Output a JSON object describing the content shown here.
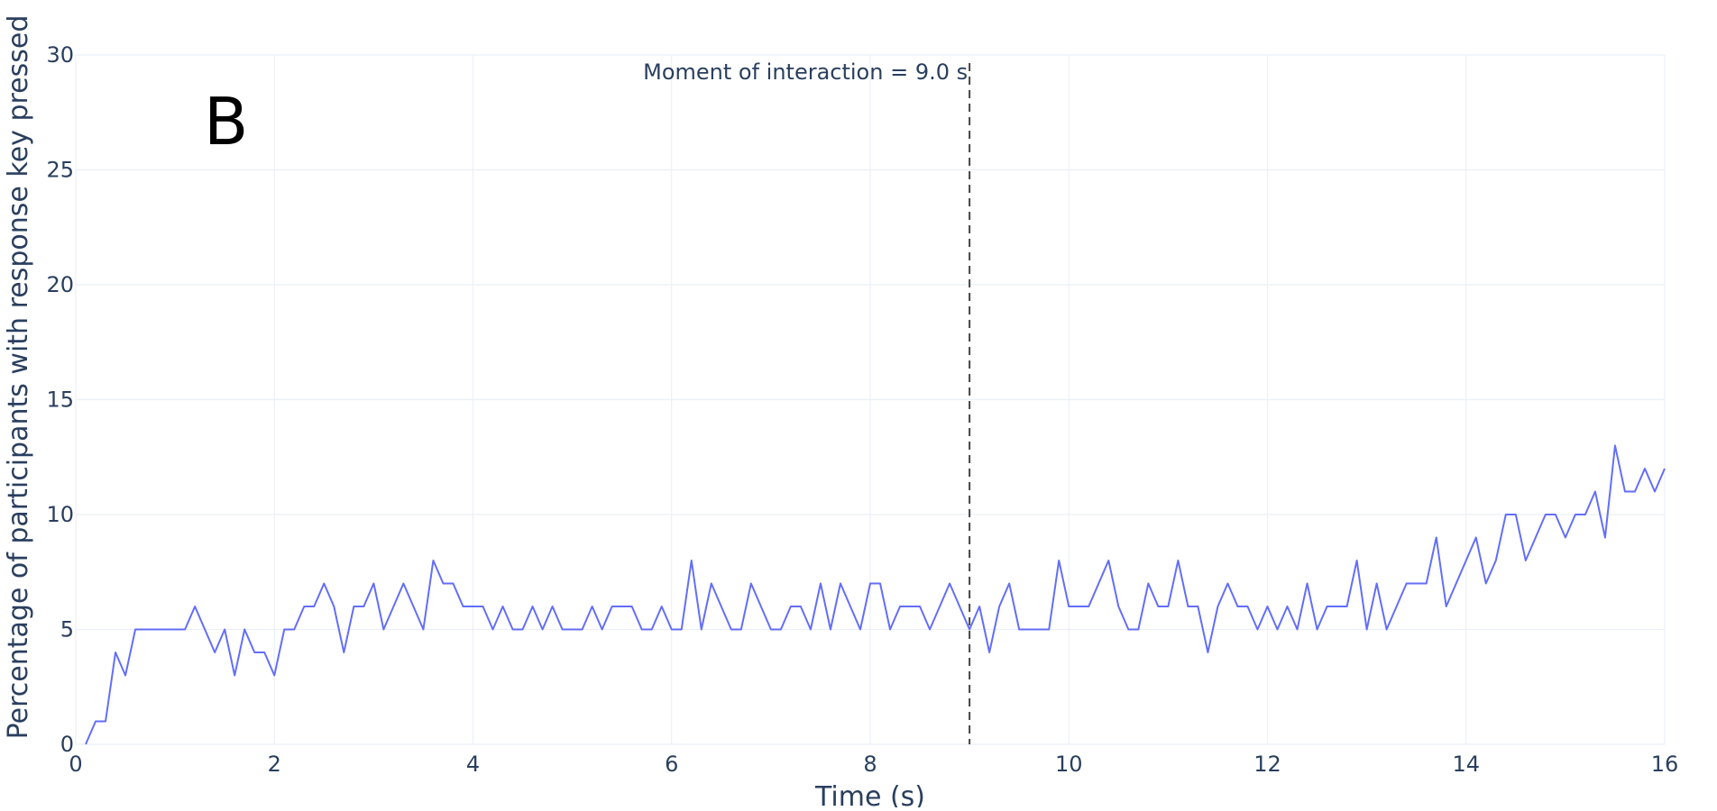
{
  "chart_data": {
    "type": "line",
    "title": "",
    "xlabel": "Time (s)",
    "ylabel": "Percentage of participants with response key pressed",
    "panel_label": "B",
    "xlim": [
      0,
      16
    ],
    "ylim": [
      0,
      30
    ],
    "x_ticks": [
      0,
      2,
      4,
      6,
      8,
      10,
      12,
      14,
      16
    ],
    "y_ticks": [
      0,
      5,
      10,
      15,
      20,
      25,
      30
    ],
    "grid": true,
    "line_color": "#636efa",
    "series": [
      {
        "x": [
          0.1,
          0.2,
          0.3,
          0.4,
          0.5,
          0.6,
          0.7,
          0.8,
          0.9,
          1.0,
          1.1,
          1.2,
          1.3,
          1.4,
          1.5,
          1.6,
          1.7,
          1.8,
          1.9,
          2.0,
          2.1,
          2.2,
          2.3,
          2.4,
          2.5,
          2.6,
          2.7,
          2.8,
          2.9,
          3.0,
          3.1,
          3.2,
          3.3,
          3.4,
          3.5,
          3.6,
          3.7,
          3.8,
          3.9,
          4.0,
          4.1,
          4.2,
          4.3,
          4.4,
          4.5,
          4.6,
          4.7,
          4.8,
          4.9,
          5.0,
          5.1,
          5.2,
          5.3,
          5.4,
          5.5,
          5.6,
          5.7,
          5.8,
          5.9,
          6.0,
          6.1,
          6.2,
          6.3,
          6.4,
          6.5,
          6.6,
          6.7,
          6.8,
          6.9,
          7.0,
          7.1,
          7.2,
          7.3,
          7.4,
          7.5,
          7.6,
          7.7,
          7.8,
          7.9,
          8.0,
          8.1,
          8.2,
          8.3,
          8.4,
          8.5,
          8.6,
          8.7,
          8.8,
          8.9,
          9.0,
          9.1,
          9.2,
          9.3,
          9.4,
          9.5,
          9.6,
          9.7,
          9.8,
          9.9,
          10.0,
          10.1,
          10.2,
          10.3,
          10.4,
          10.5,
          10.6,
          10.7,
          10.8,
          10.9,
          11.0,
          11.1,
          11.2,
          11.3,
          11.4,
          11.5,
          11.6,
          11.7,
          11.8,
          11.9,
          12.0,
          12.1,
          12.2,
          12.3,
          12.4,
          12.5,
          12.6,
          12.7,
          12.8,
          12.9,
          13.0,
          13.1,
          13.2,
          13.3,
          13.4,
          13.5,
          13.6,
          13.7,
          13.8,
          13.9,
          14.0,
          14.1,
          14.2,
          14.3,
          14.4,
          14.5,
          14.6,
          14.7,
          14.8,
          14.9,
          15.0,
          15.1,
          15.2,
          15.3,
          15.4,
          15.5,
          15.6,
          15.7,
          15.8,
          15.9,
          16.0
        ],
        "y": [
          0,
          1,
          1,
          4,
          3,
          5,
          5,
          5,
          5,
          5,
          5,
          6,
          5,
          4,
          5,
          3,
          5,
          4,
          4,
          3,
          5,
          5,
          6,
          6,
          7,
          6,
          4,
          6,
          6,
          7,
          5,
          6,
          7,
          6,
          5,
          8,
          7,
          7,
          6,
          6,
          6,
          5,
          6,
          5,
          5,
          6,
          5,
          6,
          5,
          5,
          5,
          6,
          5,
          6,
          6,
          6,
          5,
          5,
          6,
          5,
          5,
          8,
          5,
          7,
          6,
          5,
          5,
          7,
          6,
          5,
          5,
          6,
          6,
          5,
          7,
          5,
          7,
          6,
          5,
          7,
          7,
          5,
          6,
          6,
          6,
          5,
          6,
          7,
          6,
          5,
          6,
          4,
          6,
          7,
          5,
          5,
          5,
          5,
          8,
          6,
          6,
          6,
          7,
          8,
          6,
          5,
          5,
          7,
          6,
          6,
          8,
          6,
          6,
          4,
          6,
          7,
          6,
          6,
          5,
          6,
          5,
          6,
          5,
          7,
          5,
          6,
          6,
          6,
          8,
          5,
          7,
          5,
          6,
          7,
          7,
          7,
          9,
          6,
          7,
          8,
          9,
          7,
          8,
          10,
          10,
          8,
          9,
          10,
          10,
          9,
          10,
          10,
          11,
          9,
          13,
          11,
          11,
          12,
          11,
          12
        ]
      }
    ],
    "annotation": {
      "x": 9.0,
      "text": "Moment of interaction = 9.0 s",
      "line_style": "dashed",
      "line_color": "#444444"
    }
  }
}
